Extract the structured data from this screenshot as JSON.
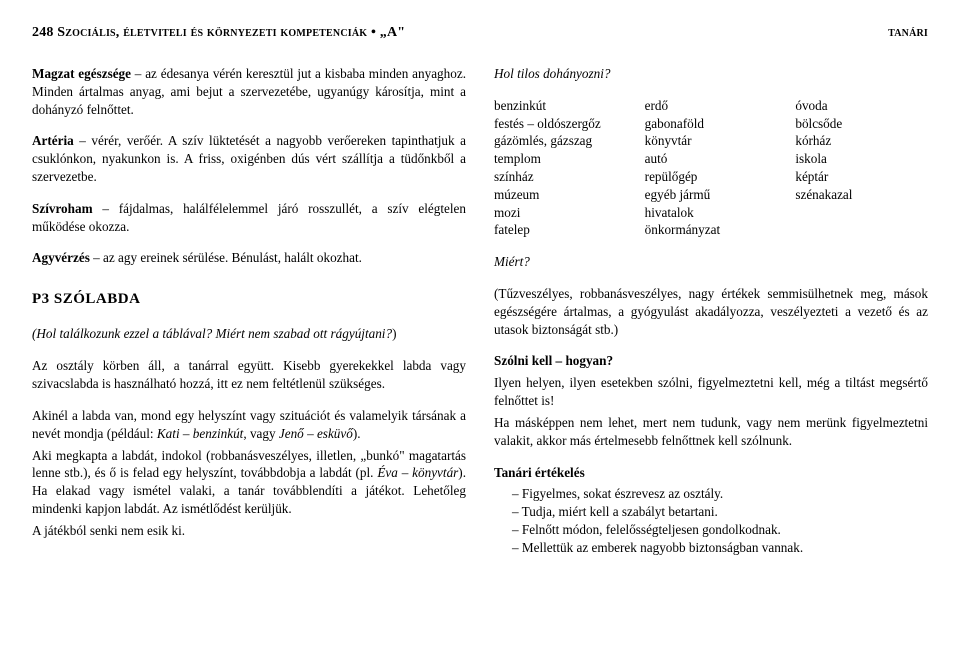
{
  "header": {
    "left": "248  Szociális, életviteli és környezeti kompetenciák • „A\"",
    "right": "tanári"
  },
  "left_col": {
    "p1_term": "Magzat egészsége",
    "p1_rest": " – az édesanya vérén keresztül jut a kisbaba minden anyaghoz. Minden ártalmas anyag, ami bejut a szervezetébe, ugyanúgy károsítja, mint a dohányzó felnőttet.",
    "p2_term": "Artéria",
    "p2_rest": " – vérér, verőér. A szív lüktetését a nagyobb verőereken tapinthatjuk a csuklónkon, nyakunkon is. A friss, oxigénben dús vért szállítja a tüdőnkből a szervezetbe.",
    "p3_term": "Szívroham",
    "p3_rest": " – fájdalmas, halálfélelemmel járó rosszullét, a szív elégtelen működése okozza.",
    "p4_term": "Agyvérzés",
    "p4_rest": " – az agy ereinek sérülése. Bénulást, halált okozhat.",
    "section": "P3 SZÓLABDA",
    "q_line_a": "(Hol találkozunk ezzel a táblával? Miért nem szabad ott rágyújtani?",
    "q_line_b": ")",
    "p5": "Az osztály körben áll, a tanárral együtt. Kisebb gyerekekkel labda vagy szivacslabda is használható hozzá, itt ez nem feltétlenül szükséges.",
    "p6_a": "Akinél a labda van, mond egy helyszínt vagy szituációt és valamelyik társának a nevét mondja (például: ",
    "p6_kati": "Kati – benzinkút",
    "p6_b": ", vagy ",
    "p6_jeno": "Jenő – esküvő",
    "p6_c": ").",
    "p7_a": "Aki megkapta a labdát, indokol (robbanásveszélyes, illetlen, „bunkó\" magatartás lenne stb.), és ő is felad egy helyszínt, továbbdobja a labdát (pl. ",
    "p7_eva": "Éva – könyvtár",
    "p7_b": "). Ha elakad vagy ismétel valaki, a tanár továbblendíti a játékot. Lehetőleg mindenki kapjon labdát. Az ismétlődést kerüljük.",
    "p8": "A játékból senki nem esik ki."
  },
  "right_col": {
    "q": "Hol tilos dohányozni?",
    "col1": [
      "benzinkút",
      "festés – oldószergőz",
      "gázömlés, gázszag",
      "templom",
      "színház",
      "múzeum",
      "mozi",
      "fatelep"
    ],
    "col2": [
      "erdő",
      "gabonaföld",
      "könyvtár",
      "autó",
      "repülőgép",
      "egyéb jármű",
      "hivatalok",
      "önkormányzat"
    ],
    "col3": [
      "óvoda",
      "bölcsőde",
      "kórház",
      "iskola",
      "képtár",
      "szénakazal"
    ],
    "miert": "Miért?",
    "answer": "(Tűzveszélyes, robbanásveszélyes, nagy értékek semmisülhetnek meg, mások egészségére ártalmas, a gyógyulást akadályozza, veszélyezteti a vezető és az utasok biztonságát stb.)",
    "szolni_head": "Szólni kell – hogyan?",
    "szolni_p1": "Ilyen helyen, ilyen esetekben szólni, figyelmeztetni kell, még a tiltást megsértő felnőttet is!",
    "szolni_p2": "Ha másképpen nem lehet, mert nem tudunk, vagy nem merünk figyelmeztetni valakit, akkor más értelmesebb felnőttnek kell szólnunk.",
    "eval_head": "Tanári értékelés",
    "eval_items": [
      "– Figyelmes, sokat észrevesz az osztály.",
      "– Tudja, miért kell a szabályt betartani.",
      "– Felnőtt módon, felelősségteljesen gondolkodnak.",
      "– Mellettük az emberek nagyobb biztonságban vannak."
    ]
  }
}
